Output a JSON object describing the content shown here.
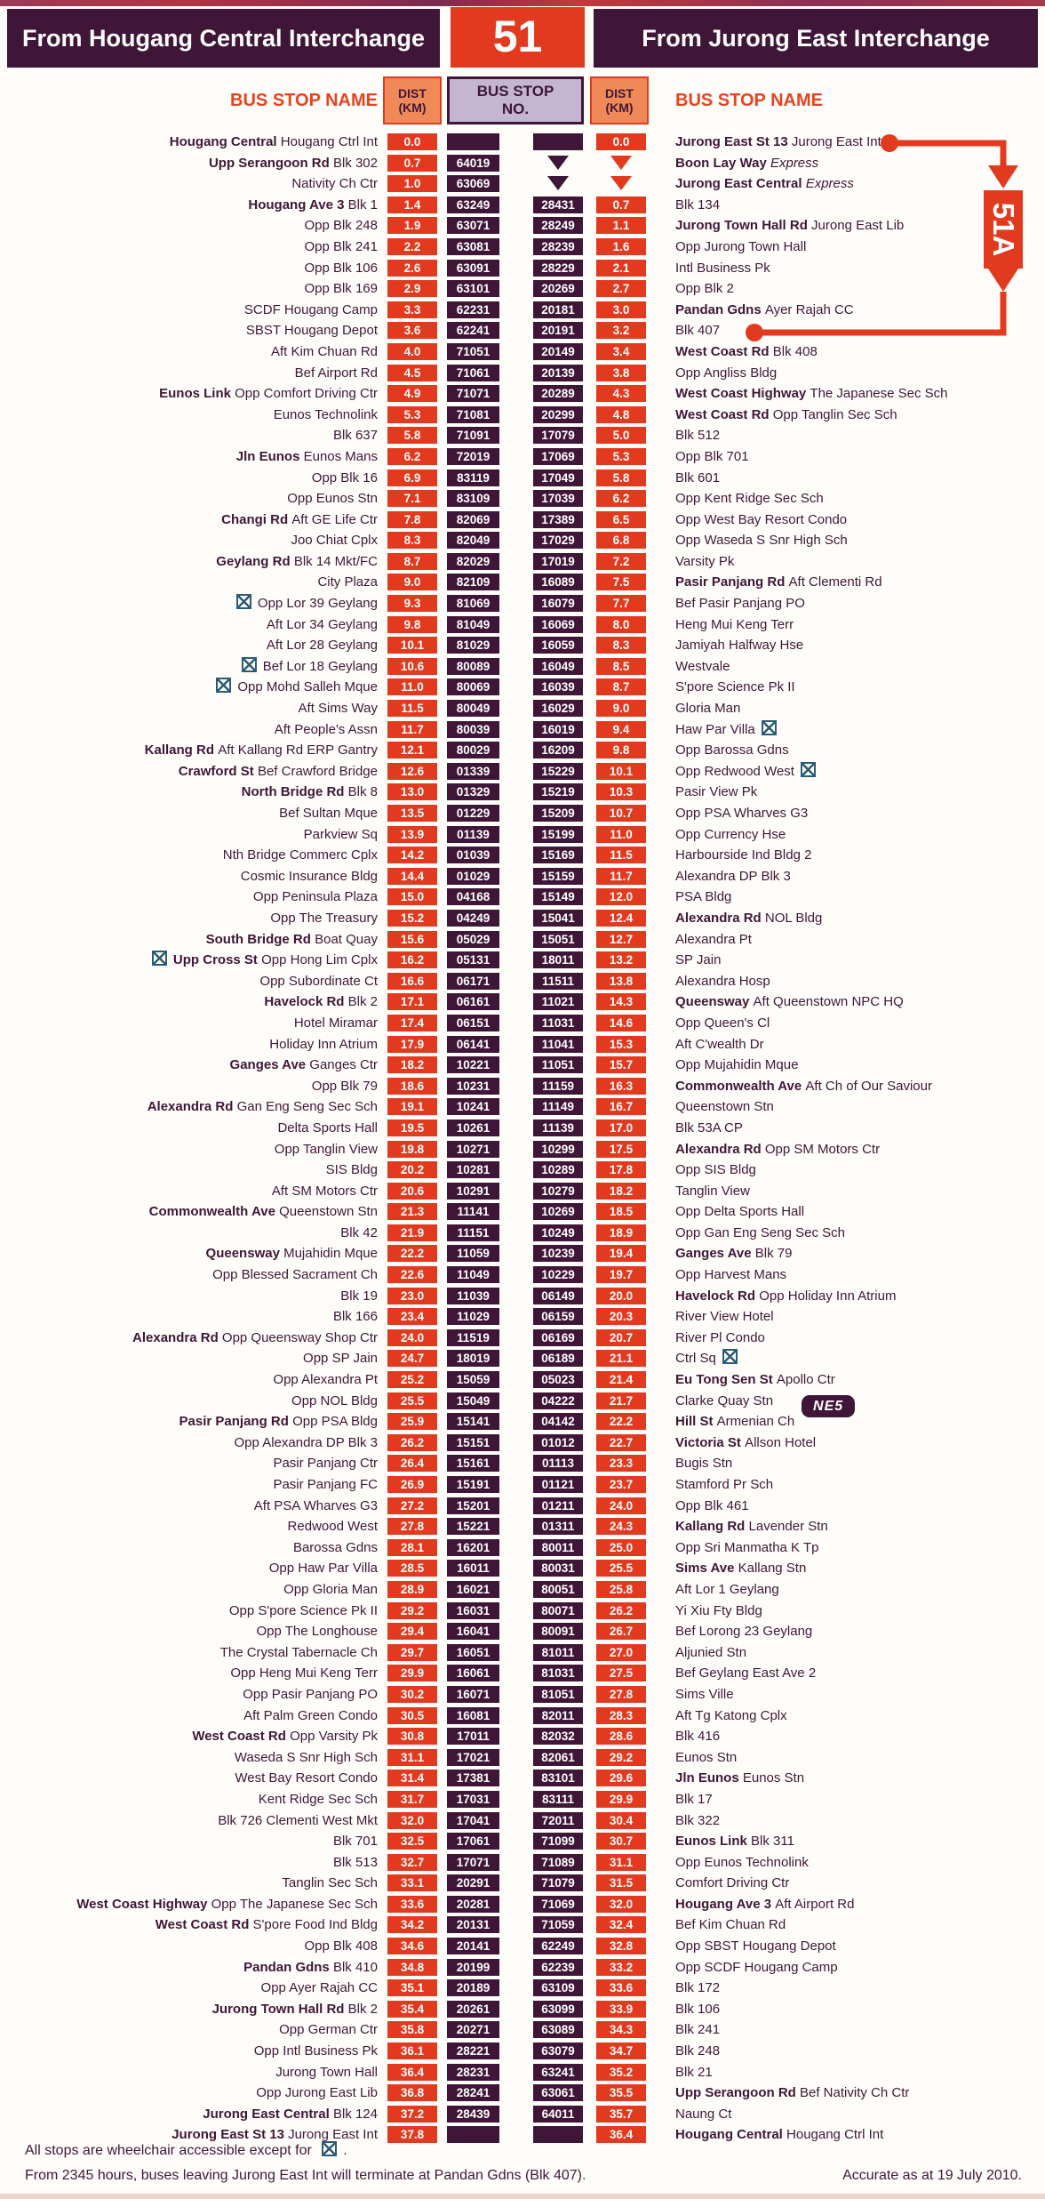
{
  "header": {
    "left_title": "From Hougang Central Interchange",
    "service_number": "51",
    "right_title": "From Jurong East Interchange"
  },
  "columns": {
    "name_header": "BUS STOP NAME",
    "dist_l1": "DIST",
    "dist_l2": "(KM)",
    "no_l1": "BUS STOP",
    "no_l2": "NO."
  },
  "branch": {
    "label": "51A"
  },
  "colors": {
    "red": "#e13a1f",
    "dark_purple": "#3f1637",
    "peach": "#ef8a58",
    "lavender": "#c4b6d0",
    "wheelchair_icon": "#2b5c77"
  },
  "footer": {
    "note1_pre": "All stops are wheelchair accessible except for ",
    "note1_post": ".",
    "note2": "From 2345 hours, buses leaving Jurong East Int will terminate at Pandan Gdns (Blk 407).",
    "accurate": "Accurate as at 19 July 2010."
  },
  "rows": [
    {
      "lb": "Hougang Central",
      "ln": "Hougang Ctrl Int",
      "ld": "0.0",
      "lno": "",
      "rno": "",
      "rd": "0.0",
      "rb": "Jurong East St 13",
      "rn": "Jurong East Int"
    },
    {
      "lb": "Upp Serangoon Rd",
      "ln": "Blk 302",
      "ld": "0.7",
      "lno": "64019",
      "rno": "T",
      "rd": "T",
      "rb": "Boon Lay Way",
      "rn": "Express",
      "rit": 1
    },
    {
      "ln": "Nativity Ch Ctr",
      "ld": "1.0",
      "lno": "63069",
      "rno": "T",
      "rd": "T",
      "rb": "Jurong East Central",
      "rn": "Express",
      "rit": 1
    },
    {
      "lb": "Hougang Ave 3",
      "ln": "Blk 1",
      "ld": "1.4",
      "lno": "63249",
      "rno": "28431",
      "rd": "0.7",
      "rn": "Blk 134"
    },
    {
      "ln": "Opp Blk 248",
      "ld": "1.9",
      "lno": "63071",
      "rno": "28249",
      "rd": "1.1",
      "rb": "Jurong Town Hall Rd",
      "rn": "Jurong East Lib"
    },
    {
      "ln": "Opp Blk 241",
      "ld": "2.2",
      "lno": "63081",
      "rno": "28239",
      "rd": "1.6",
      "rn": "Opp Jurong Town Hall"
    },
    {
      "ln": "Opp Blk 106",
      "ld": "2.6",
      "lno": "63091",
      "rno": "28229",
      "rd": "2.1",
      "rn": "Intl Business Pk"
    },
    {
      "ln": "Opp Blk 169",
      "ld": "2.9",
      "lno": "63101",
      "rno": "20269",
      "rd": "2.7",
      "rn": "Opp Blk 2"
    },
    {
      "ln": "SCDF Hougang Camp",
      "ld": "3.3",
      "lno": "62231",
      "rno": "20181",
      "rd": "3.0",
      "rb": "Pandan Gdns",
      "rn": "Ayer Rajah CC"
    },
    {
      "ln": "SBST Hougang Depot",
      "ld": "3.6",
      "lno": "62241",
      "rno": "20191",
      "rd": "3.2",
      "rn": "Blk 407"
    },
    {
      "ln": "Aft Kim Chuan Rd",
      "ld": "4.0",
      "lno": "71051",
      "rno": "20149",
      "rd": "3.4",
      "rb": "West Coast Rd",
      "rn": "Blk 408"
    },
    {
      "ln": "Bef Airport Rd",
      "ld": "4.5",
      "lno": "71061",
      "rno": "20139",
      "rd": "3.8",
      "rn": "Opp Angliss Bldg"
    },
    {
      "lb": "Eunos Link",
      "ln": "Opp Comfort Driving Ctr",
      "ld": "4.9",
      "lno": "71071",
      "rno": "20289",
      "rd": "4.3",
      "rb": "West Coast Highway",
      "rn": "The Japanese Sec Sch"
    },
    {
      "ln": "Eunos Technolink",
      "ld": "5.3",
      "lno": "71081",
      "rno": "20299",
      "rd": "4.8",
      "rb": "West Coast Rd",
      "rn": "Opp Tanglin Sec Sch"
    },
    {
      "ln": "Blk 637",
      "ld": "5.8",
      "lno": "71091",
      "rno": "17079",
      "rd": "5.0",
      "rn": "Blk 512"
    },
    {
      "lb": "Jln Eunos",
      "ln": "Eunos Mans",
      "ld": "6.2",
      "lno": "72019",
      "rno": "17069",
      "rd": "5.3",
      "rn": "Opp Blk 701"
    },
    {
      "ln": "Opp Blk 16",
      "ld": "6.9",
      "lno": "83119",
      "rno": "17049",
      "rd": "5.8",
      "rn": "Blk 601"
    },
    {
      "ln": "Opp Eunos Stn",
      "ld": "7.1",
      "lno": "83109",
      "rno": "17039",
      "rd": "6.2",
      "rn": "Opp Kent Ridge Sec Sch"
    },
    {
      "lb": "Changi Rd",
      "ln": "Aft GE Life Ctr",
      "ld": "7.8",
      "lno": "82069",
      "rno": "17389",
      "rd": "6.5",
      "rn": "Opp West Bay Resort Condo"
    },
    {
      "ln": "Joo Chiat Cplx",
      "ld": "8.3",
      "lno": "82049",
      "rno": "17029",
      "rd": "6.8",
      "rn": "Opp Waseda S Snr High Sch"
    },
    {
      "lb": "Geylang Rd",
      "ln": "Blk 14 Mkt/FC",
      "ld": "8.7",
      "lno": "82029",
      "rno": "17019",
      "rd": "7.2",
      "rn": "Varsity Pk"
    },
    {
      "ln": "City Plaza",
      "ld": "9.0",
      "lno": "82109",
      "rno": "16089",
      "rd": "7.5",
      "rb": "Pasir Panjang Rd",
      "rn": "Aft Clementi Rd"
    },
    {
      "ln": "Opp Lor 39 Geylang",
      "lw": 1,
      "ld": "9.3",
      "lno": "81069",
      "rno": "16079",
      "rd": "7.7",
      "rn": "Bef Pasir Panjang PO"
    },
    {
      "ln": "Aft Lor 34 Geylang",
      "ld": "9.8",
      "lno": "81049",
      "rno": "16069",
      "rd": "8.0",
      "rn": "Heng Mui Keng Terr"
    },
    {
      "ln": "Aft Lor 28 Geylang",
      "ld": "10.1",
      "lno": "81029",
      "rno": "16059",
      "rd": "8.3",
      "rn": "Jamiyah Halfway Hse"
    },
    {
      "ln": "Bef Lor 18 Geylang",
      "lw": 1,
      "ld": "10.6",
      "lno": "80089",
      "rno": "16049",
      "rd": "8.5",
      "rn": "Westvale"
    },
    {
      "ln": "Opp Mohd Salleh Mque",
      "lw": 1,
      "ld": "11.0",
      "lno": "80069",
      "rno": "16039",
      "rd": "8.7",
      "rn": "S'pore Science Pk II"
    },
    {
      "ln": "Aft Sims Way",
      "ld": "11.5",
      "lno": "80049",
      "rno": "16029",
      "rd": "9.0",
      "rn": "Gloria Man"
    },
    {
      "ln": "Aft People's Assn",
      "ld": "11.7",
      "lno": "80039",
      "rno": "16019",
      "rd": "9.4",
      "rn": "Haw Par Villa",
      "rw": 1
    },
    {
      "lb": "Kallang Rd",
      "ln": "Aft Kallang Rd ERP Gantry",
      "ld": "12.1",
      "lno": "80029",
      "rno": "16209",
      "rd": "9.8",
      "rn": "Opp Barossa Gdns"
    },
    {
      "lb": "Crawford St",
      "ln": "Bef Crawford Bridge",
      "ld": "12.6",
      "lno": "01339",
      "rno": "15229",
      "rd": "10.1",
      "rn": "Opp Redwood West",
      "rw": 1
    },
    {
      "lb": "North Bridge Rd",
      "ln": "Blk 8",
      "ld": "13.0",
      "lno": "01329",
      "rno": "15219",
      "rd": "10.3",
      "rn": "Pasir View Pk"
    },
    {
      "ln": "Bef Sultan Mque",
      "ld": "13.5",
      "lno": "01229",
      "rno": "15209",
      "rd": "10.7",
      "rn": "Opp PSA Wharves G3"
    },
    {
      "ln": "Parkview Sq",
      "ld": "13.9",
      "lno": "01139",
      "rno": "15199",
      "rd": "11.0",
      "rn": "Opp Currency Hse"
    },
    {
      "ln": "Nth Bridge Commerc Cplx",
      "ld": "14.2",
      "lno": "01039",
      "rno": "15169",
      "rd": "11.5",
      "rn": "Harbourside Ind Bldg 2"
    },
    {
      "ln": "Cosmic Insurance Bldg",
      "ld": "14.4",
      "lno": "01029",
      "rno": "15159",
      "rd": "11.7",
      "rn": "Alexandra DP Blk 3"
    },
    {
      "ln": "Opp Peninsula Plaza",
      "ld": "15.0",
      "lno": "04168",
      "rno": "15149",
      "rd": "12.0",
      "rn": "PSA Bldg"
    },
    {
      "ln": "Opp The Treasury",
      "ld": "15.2",
      "lno": "04249",
      "rno": "15041",
      "rd": "12.4",
      "rb": "Alexandra Rd",
      "rn": "NOL Bldg"
    },
    {
      "lb": "South Bridge Rd",
      "ln": "Boat Quay",
      "ld": "15.6",
      "lno": "05029",
      "rno": "15051",
      "rd": "12.7",
      "rn": "Alexandra Pt"
    },
    {
      "lb": "Upp Cross St",
      "ln": "Opp Hong Lim Cplx",
      "lw": 1,
      "ld": "16.2",
      "lno": "05131",
      "rno": "18011",
      "rd": "13.2",
      "rn": "SP Jain"
    },
    {
      "ln": "Opp Subordinate Ct",
      "ld": "16.6",
      "lno": "06171",
      "rno": "11511",
      "rd": "13.8",
      "rn": "Alexandra Hosp"
    },
    {
      "lb": "Havelock Rd",
      "ln": "Blk 2",
      "ld": "17.1",
      "lno": "06161",
      "rno": "11021",
      "rd": "14.3",
      "rb": "Queensway",
      "rn": "Aft Queenstown NPC HQ"
    },
    {
      "ln": "Hotel Miramar",
      "ld": "17.4",
      "lno": "06151",
      "rno": "11031",
      "rd": "14.6",
      "rn": "Opp Queen's Cl"
    },
    {
      "ln": "Holiday Inn Atrium",
      "ld": "17.9",
      "lno": "06141",
      "rno": "11041",
      "rd": "15.3",
      "rn": "Aft C'wealth Dr"
    },
    {
      "lb": "Ganges Ave",
      "ln": "Ganges Ctr",
      "ld": "18.2",
      "lno": "10221",
      "rno": "11051",
      "rd": "15.7",
      "rn": "Opp Mujahidin Mque"
    },
    {
      "ln": "Opp Blk 79",
      "ld": "18.6",
      "lno": "10231",
      "rno": "11159",
      "rd": "16.3",
      "rb": "Commonwealth Ave",
      "rn": "Aft Ch of Our Saviour"
    },
    {
      "lb": "Alexandra Rd",
      "ln": "Gan Eng Seng Sec Sch",
      "ld": "19.1",
      "lno": "10241",
      "rno": "11149",
      "rd": "16.7",
      "rn": "Queenstown Stn"
    },
    {
      "ln": "Delta Sports Hall",
      "ld": "19.5",
      "lno": "10261",
      "rno": "11139",
      "rd": "17.0",
      "rn": "Blk 53A CP"
    },
    {
      "ln": "Opp Tanglin View",
      "ld": "19.8",
      "lno": "10271",
      "rno": "10299",
      "rd": "17.5",
      "rb": "Alexandra Rd",
      "rn": "Opp SM Motors Ctr"
    },
    {
      "ln": "SIS Bldg",
      "ld": "20.2",
      "lno": "10281",
      "rno": "10289",
      "rd": "17.8",
      "rn": "Opp SIS Bldg"
    },
    {
      "ln": "Aft SM Motors Ctr",
      "ld": "20.6",
      "lno": "10291",
      "rno": "10279",
      "rd": "18.2",
      "rn": "Tanglin View"
    },
    {
      "lb": "Commonwealth Ave",
      "ln": "Queenstown Stn",
      "ld": "21.3",
      "lno": "11141",
      "rno": "10269",
      "rd": "18.5",
      "rn": "Opp Delta Sports Hall"
    },
    {
      "ln": "Blk 42",
      "ld": "21.9",
      "lno": "11151",
      "rno": "10249",
      "rd": "18.9",
      "rn": "Opp Gan Eng Seng Sec Sch"
    },
    {
      "lb": "Queensway",
      "ln": "Mujahidin Mque",
      "ld": "22.2",
      "lno": "11059",
      "rno": "10239",
      "rd": "19.4",
      "rb": "Ganges Ave",
      "rn": "Blk 79"
    },
    {
      "ln": "Opp Blessed Sacrament Ch",
      "ld": "22.6",
      "lno": "11049",
      "rno": "10229",
      "rd": "19.7",
      "rn": "Opp Harvest Mans"
    },
    {
      "ln": "Blk 19",
      "ld": "23.0",
      "lno": "11039",
      "rno": "06149",
      "rd": "20.0",
      "rb": "Havelock Rd",
      "rn": "Opp Holiday Inn Atrium"
    },
    {
      "ln": "Blk 166",
      "ld": "23.4",
      "lno": "11029",
      "rno": "06159",
      "rd": "20.3",
      "rn": "River View Hotel"
    },
    {
      "lb": "Alexandra Rd",
      "ln": "Opp Queensway Shop Ctr",
      "ld": "24.0",
      "lno": "11519",
      "rno": "06169",
      "rd": "20.7",
      "rn": "River Pl Condo"
    },
    {
      "ln": "Opp SP Jain",
      "ld": "24.7",
      "lno": "18019",
      "rno": "06189",
      "rd": "21.1",
      "rn": "Ctrl Sq",
      "rw": 1
    },
    {
      "ln": "Opp Alexandra Pt",
      "ld": "25.2",
      "lno": "15059",
      "rno": "05023",
      "rd": "21.4",
      "rb": "Eu Tong Sen St",
      "rn": "Apollo Ctr"
    },
    {
      "ln": "Opp NOL Bldg",
      "ld": "25.5",
      "lno": "15049",
      "rno": "04222",
      "rd": "21.7",
      "rn": "Clarke Quay Stn",
      "badge": "NE5"
    },
    {
      "lb": "Pasir Panjang Rd",
      "ln": "Opp PSA Bldg",
      "ld": "25.9",
      "lno": "15141",
      "rno": "04142",
      "rd": "22.2",
      "rb": "Hill St",
      "rn": "Armenian Ch"
    },
    {
      "ln": "Opp Alexandra DP Blk 3",
      "ld": "26.2",
      "lno": "15151",
      "rno": "01012",
      "rd": "22.7",
      "rb": "Victoria St",
      "rn": "Allson Hotel"
    },
    {
      "ln": "Pasir Panjang Ctr",
      "ld": "26.4",
      "lno": "15161",
      "rno": "01113",
      "rd": "23.3",
      "rn": "Bugis Stn"
    },
    {
      "ln": "Pasir Panjang FC",
      "ld": "26.9",
      "lno": "15191",
      "rno": "01121",
      "rd": "23.7",
      "rn": "Stamford Pr Sch"
    },
    {
      "ln": "Aft PSA Wharves G3",
      "ld": "27.2",
      "lno": "15201",
      "rno": "01211",
      "rd": "24.0",
      "rn": "Opp Blk 461"
    },
    {
      "ln": "Redwood West",
      "ld": "27.8",
      "lno": "15221",
      "rno": "01311",
      "rd": "24.3",
      "rb": "Kallang Rd",
      "rn": "Lavender Stn"
    },
    {
      "ln": "Barossa Gdns",
      "ld": "28.1",
      "lno": "16201",
      "rno": "80011",
      "rd": "25.0",
      "rn": "Opp Sri Manmatha K Tp"
    },
    {
      "ln": "Opp Haw Par Villa",
      "ld": "28.5",
      "lno": "16011",
      "rno": "80031",
      "rd": "25.5",
      "rb": "Sims Ave",
      "rn": "Kallang Stn"
    },
    {
      "ln": "Opp Gloria Man",
      "ld": "28.9",
      "lno": "16021",
      "rno": "80051",
      "rd": "25.8",
      "rn": "Aft Lor 1 Geylang"
    },
    {
      "ln": "Opp S'pore Science Pk II",
      "ld": "29.2",
      "lno": "16031",
      "rno": "80071",
      "rd": "26.2",
      "rn": "Yi Xiu Fty Bldg"
    },
    {
      "ln": "Opp The Longhouse",
      "ld": "29.4",
      "lno": "16041",
      "rno": "80091",
      "rd": "26.7",
      "rn": "Bef Lorong 23 Geylang"
    },
    {
      "ln": "The Crystal Tabernacle Ch",
      "ld": "29.7",
      "lno": "16051",
      "rno": "81011",
      "rd": "27.0",
      "rn": "Aljunied Stn"
    },
    {
      "ln": "Opp Heng Mui Keng Terr",
      "ld": "29.9",
      "lno": "16061",
      "rno": "81031",
      "rd": "27.5",
      "rn": "Bef Geylang East Ave 2"
    },
    {
      "ln": "Opp Pasir Panjang PO",
      "ld": "30.2",
      "lno": "16071",
      "rno": "81051",
      "rd": "27.8",
      "rn": "Sims Ville"
    },
    {
      "ln": "Aft Palm Green Condo",
      "ld": "30.5",
      "lno": "16081",
      "rno": "82011",
      "rd": "28.3",
      "rn": "Aft Tg Katong Cplx"
    },
    {
      "lb": "West Coast Rd",
      "ln": "Opp Varsity Pk",
      "ld": "30.8",
      "lno": "17011",
      "rno": "82032",
      "rd": "28.6",
      "rn": "Blk 416"
    },
    {
      "ln": "Waseda S Snr High Sch",
      "ld": "31.1",
      "lno": "17021",
      "rno": "82061",
      "rd": "29.2",
      "rn": "Eunos Stn"
    },
    {
      "ln": "West Bay Resort Condo",
      "ld": "31.4",
      "lno": "17381",
      "rno": "83101",
      "rd": "29.6",
      "rb": "Jln Eunos",
      "rn": "Eunos Stn"
    },
    {
      "ln": "Kent Ridge Sec Sch",
      "ld": "31.7",
      "lno": "17031",
      "rno": "83111",
      "rd": "29.9",
      "rn": "Blk 17"
    },
    {
      "ln": "Blk 726 Clementi West Mkt",
      "ld": "32.0",
      "lno": "17041",
      "rno": "72011",
      "rd": "30.4",
      "rn": "Blk 322"
    },
    {
      "ln": "Blk 701",
      "ld": "32.5",
      "lno": "17061",
      "rno": "71099",
      "rd": "30.7",
      "rb": "Eunos Link",
      "rn": "Blk 311"
    },
    {
      "ln": "Blk 513",
      "ld": "32.7",
      "lno": "17071",
      "rno": "71089",
      "rd": "31.1",
      "rn": "Opp Eunos Technolink"
    },
    {
      "ln": "Tanglin Sec Sch",
      "ld": "33.1",
      "lno": "20291",
      "rno": "71079",
      "rd": "31.5",
      "rn": "Comfort Driving Ctr"
    },
    {
      "lb": "West Coast Highway",
      "ln": "Opp The Japanese Sec Sch",
      "ld": "33.6",
      "lno": "20281",
      "rno": "71069",
      "rd": "32.0",
      "rb": "Hougang Ave 3",
      "rn": "Aft Airport Rd"
    },
    {
      "lb": "West Coast Rd",
      "ln": "S'pore Food Ind Bldg",
      "ld": "34.2",
      "lno": "20131",
      "rno": "71059",
      "rd": "32.4",
      "rn": "Bef Kim Chuan Rd"
    },
    {
      "ln": "Opp Blk 408",
      "ld": "34.6",
      "lno": "20141",
      "rno": "62249",
      "rd": "32.8",
      "rn": "Opp SBST Hougang Depot"
    },
    {
      "lb": "Pandan Gdns",
      "ln": "Blk 410",
      "ld": "34.8",
      "lno": "20199",
      "rno": "62239",
      "rd": "33.2",
      "rn": "Opp SCDF Hougang Camp"
    },
    {
      "ln": "Opp Ayer Rajah CC",
      "ld": "35.1",
      "lno": "20189",
      "rno": "63109",
      "rd": "33.6",
      "rn": "Blk 172"
    },
    {
      "lb": "Jurong Town Hall Rd",
      "ln": "Blk 2",
      "ld": "35.4",
      "lno": "20261",
      "rno": "63099",
      "rd": "33.9",
      "rn": "Blk 106"
    },
    {
      "ln": "Opp German Ctr",
      "ld": "35.8",
      "lno": "20271",
      "rno": "63089",
      "rd": "34.3",
      "rn": "Blk 241"
    },
    {
      "ln": "Opp Intl Business Pk",
      "ld": "36.1",
      "lno": "28221",
      "rno": "63079",
      "rd": "34.7",
      "rn": "Blk 248"
    },
    {
      "ln": "Jurong Town Hall",
      "ld": "36.4",
      "lno": "28231",
      "rno": "63241",
      "rd": "35.2",
      "rn": "Blk 21"
    },
    {
      "ln": "Opp Jurong East Lib",
      "ld": "36.8",
      "lno": "28241",
      "rno": "63061",
      "rd": "35.5",
      "rb": "Upp Serangoon Rd",
      "rn": "Bef Nativity Ch Ctr"
    },
    {
      "lb": "Jurong East Central",
      "ln": "Blk 124",
      "ld": "37.2",
      "lno": "28439",
      "rno": "64011",
      "rd": "35.7",
      "rn": "Naung Ct"
    },
    {
      "lb": "Jurong East St 13",
      "ln": "Jurong East Int",
      "ld": "37.8",
      "lno": "",
      "rno": "",
      "rd": "36.4",
      "rb": "Hougang Central",
      "rn": "Hougang Ctrl Int"
    }
  ]
}
